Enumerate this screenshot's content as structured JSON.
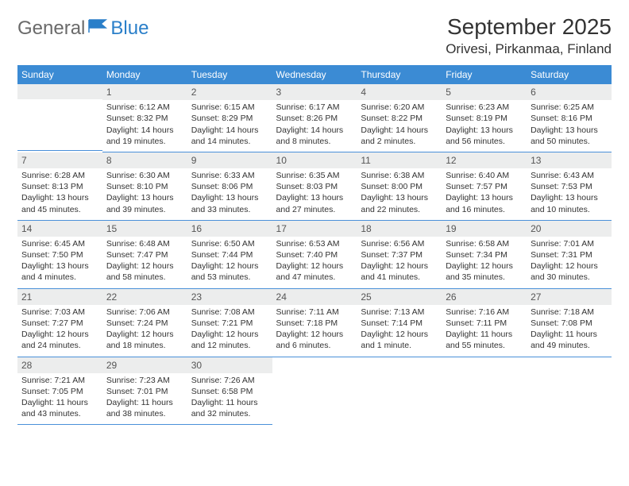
{
  "logo": {
    "text1": "General",
    "text2": "Blue"
  },
  "title": "September 2025",
  "location": "Orivesi, Pirkanmaa, Finland",
  "colors": {
    "header_bg": "#3b8bd4",
    "header_fg": "#ffffff",
    "daynum_bg": "#eceded",
    "border": "#4a90d9",
    "text": "#333333",
    "logo_gray": "#6a6a6a",
    "logo_blue": "#2a7fc9"
  },
  "weekdays": [
    "Sunday",
    "Monday",
    "Tuesday",
    "Wednesday",
    "Thursday",
    "Friday",
    "Saturday"
  ],
  "weeks": [
    [
      null,
      {
        "n": "1",
        "sr": "6:12 AM",
        "ss": "8:32 PM",
        "dl": "14 hours and 19 minutes."
      },
      {
        "n": "2",
        "sr": "6:15 AM",
        "ss": "8:29 PM",
        "dl": "14 hours and 14 minutes."
      },
      {
        "n": "3",
        "sr": "6:17 AM",
        "ss": "8:26 PM",
        "dl": "14 hours and 8 minutes."
      },
      {
        "n": "4",
        "sr": "6:20 AM",
        "ss": "8:22 PM",
        "dl": "14 hours and 2 minutes."
      },
      {
        "n": "5",
        "sr": "6:23 AM",
        "ss": "8:19 PM",
        "dl": "13 hours and 56 minutes."
      },
      {
        "n": "6",
        "sr": "6:25 AM",
        "ss": "8:16 PM",
        "dl": "13 hours and 50 minutes."
      }
    ],
    [
      {
        "n": "7",
        "sr": "6:28 AM",
        "ss": "8:13 PM",
        "dl": "13 hours and 45 minutes."
      },
      {
        "n": "8",
        "sr": "6:30 AM",
        "ss": "8:10 PM",
        "dl": "13 hours and 39 minutes."
      },
      {
        "n": "9",
        "sr": "6:33 AM",
        "ss": "8:06 PM",
        "dl": "13 hours and 33 minutes."
      },
      {
        "n": "10",
        "sr": "6:35 AM",
        "ss": "8:03 PM",
        "dl": "13 hours and 27 minutes."
      },
      {
        "n": "11",
        "sr": "6:38 AM",
        "ss": "8:00 PM",
        "dl": "13 hours and 22 minutes."
      },
      {
        "n": "12",
        "sr": "6:40 AM",
        "ss": "7:57 PM",
        "dl": "13 hours and 16 minutes."
      },
      {
        "n": "13",
        "sr": "6:43 AM",
        "ss": "7:53 PM",
        "dl": "13 hours and 10 minutes."
      }
    ],
    [
      {
        "n": "14",
        "sr": "6:45 AM",
        "ss": "7:50 PM",
        "dl": "13 hours and 4 minutes."
      },
      {
        "n": "15",
        "sr": "6:48 AM",
        "ss": "7:47 PM",
        "dl": "12 hours and 58 minutes."
      },
      {
        "n": "16",
        "sr": "6:50 AM",
        "ss": "7:44 PM",
        "dl": "12 hours and 53 minutes."
      },
      {
        "n": "17",
        "sr": "6:53 AM",
        "ss": "7:40 PM",
        "dl": "12 hours and 47 minutes."
      },
      {
        "n": "18",
        "sr": "6:56 AM",
        "ss": "7:37 PM",
        "dl": "12 hours and 41 minutes."
      },
      {
        "n": "19",
        "sr": "6:58 AM",
        "ss": "7:34 PM",
        "dl": "12 hours and 35 minutes."
      },
      {
        "n": "20",
        "sr": "7:01 AM",
        "ss": "7:31 PM",
        "dl": "12 hours and 30 minutes."
      }
    ],
    [
      {
        "n": "21",
        "sr": "7:03 AM",
        "ss": "7:27 PM",
        "dl": "12 hours and 24 minutes."
      },
      {
        "n": "22",
        "sr": "7:06 AM",
        "ss": "7:24 PM",
        "dl": "12 hours and 18 minutes."
      },
      {
        "n": "23",
        "sr": "7:08 AM",
        "ss": "7:21 PM",
        "dl": "12 hours and 12 minutes."
      },
      {
        "n": "24",
        "sr": "7:11 AM",
        "ss": "7:18 PM",
        "dl": "12 hours and 6 minutes."
      },
      {
        "n": "25",
        "sr": "7:13 AM",
        "ss": "7:14 PM",
        "dl": "12 hours and 1 minute."
      },
      {
        "n": "26",
        "sr": "7:16 AM",
        "ss": "7:11 PM",
        "dl": "11 hours and 55 minutes."
      },
      {
        "n": "27",
        "sr": "7:18 AM",
        "ss": "7:08 PM",
        "dl": "11 hours and 49 minutes."
      }
    ],
    [
      {
        "n": "28",
        "sr": "7:21 AM",
        "ss": "7:05 PM",
        "dl": "11 hours and 43 minutes."
      },
      {
        "n": "29",
        "sr": "7:23 AM",
        "ss": "7:01 PM",
        "dl": "11 hours and 38 minutes."
      },
      {
        "n": "30",
        "sr": "7:26 AM",
        "ss": "6:58 PM",
        "dl": "11 hours and 32 minutes."
      },
      null,
      null,
      null,
      null
    ]
  ],
  "labels": {
    "sunrise": "Sunrise:",
    "sunset": "Sunset:",
    "daylight": "Daylight:"
  }
}
